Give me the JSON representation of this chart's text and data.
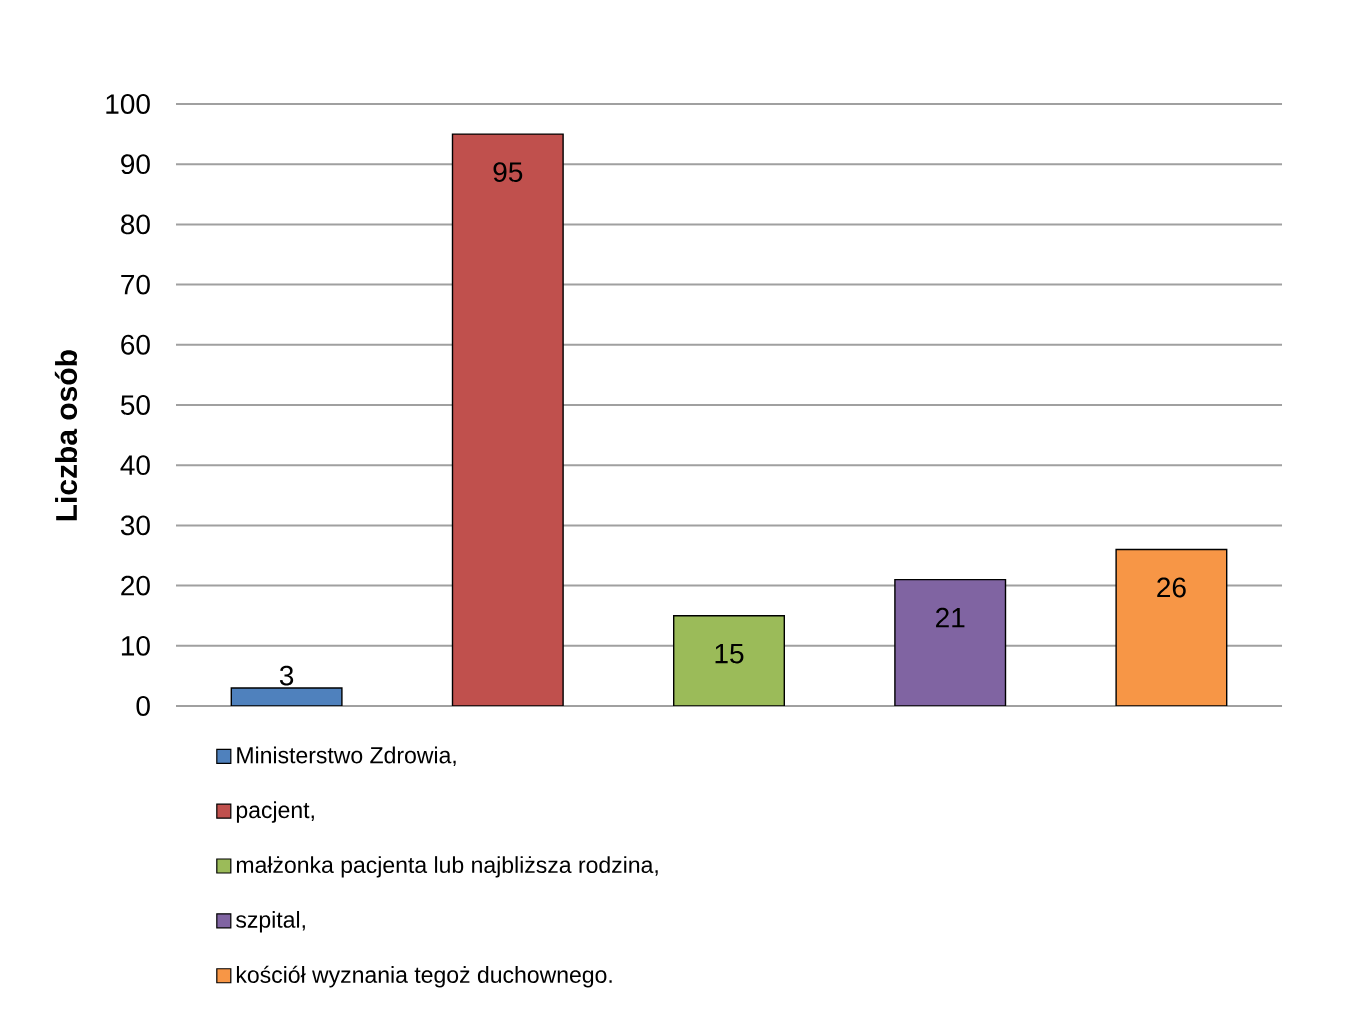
{
  "chart_data": {
    "type": "bar",
    "ylabel": "Liczba osób",
    "categories": [
      null,
      null,
      null,
      null,
      null
    ],
    "series": [
      {
        "name": "Ministerstwo Zdrowia,",
        "color": "#4f81bd",
        "values": [
          3,
          null,
          null,
          null,
          null
        ]
      },
      {
        "name": "pacjent,",
        "color": "#c0504d",
        "values": [
          null,
          95,
          null,
          null,
          null
        ]
      },
      {
        "name": "małżonka pacjenta lub najbliższa rodzina,",
        "color": "#9bbb59",
        "values": [
          null,
          null,
          15,
          null,
          null
        ]
      },
      {
        "name": "szpital,",
        "color": "#8064a2",
        "values": [
          null,
          null,
          null,
          21,
          null
        ]
      },
      {
        "name": "kościół wyznania tegoż duchownego.",
        "color": "#f79646",
        "values": [
          null,
          null,
          null,
          null,
          26
        ]
      }
    ],
    "ylim": [
      0,
      100
    ],
    "yticks": [
      0,
      10,
      20,
      30,
      40,
      50,
      60,
      70,
      80,
      90,
      100
    ],
    "grid": "y",
    "legend": "bottom",
    "tick_labels": "y",
    "data_labels": true
  }
}
